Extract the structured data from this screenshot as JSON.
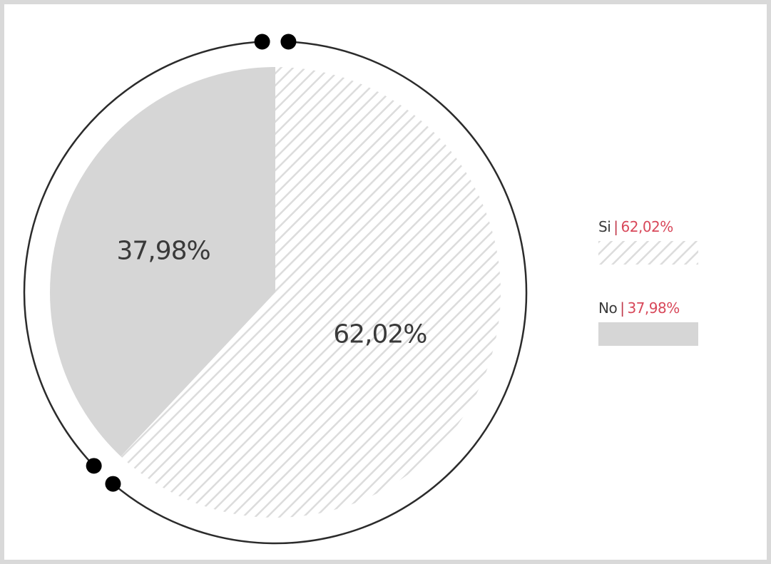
{
  "chart_data": {
    "type": "pie",
    "slices": [
      {
        "label": "Si",
        "value": 62.02,
        "display": "62,02%",
        "fill": "hatched"
      },
      {
        "label": "No",
        "value": 37.98,
        "display": "37,98%",
        "fill": "solid"
      }
    ],
    "legend": [
      {
        "name": "Si",
        "separator": "|",
        "percent": "62,02%"
      },
      {
        "name": "No",
        "separator": "|",
        "percent": "37,98%"
      }
    ],
    "legend_position": "right",
    "colors": {
      "solid_slice": "#d6d6d6",
      "hatch_stroke": "#dcdcdc",
      "outline_arc": "#2b2b2b",
      "legend_percent": "#d8485a"
    }
  }
}
